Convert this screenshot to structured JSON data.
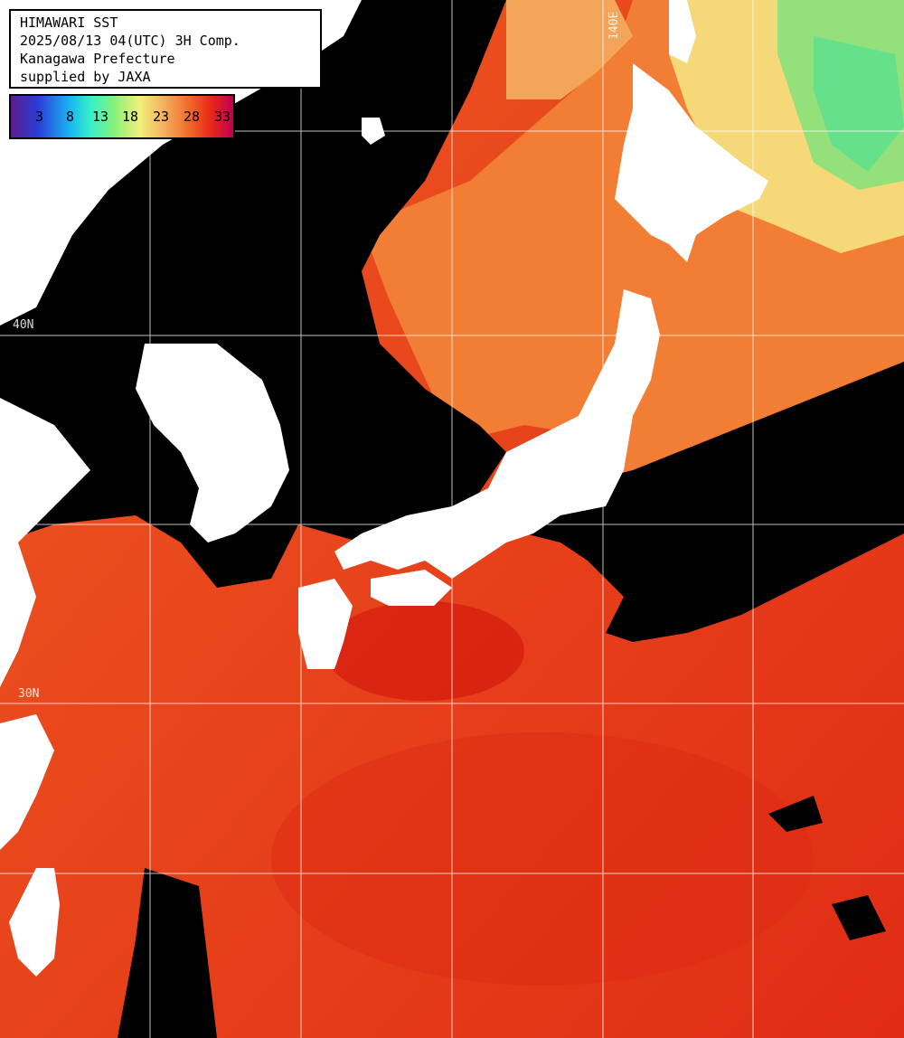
{
  "header": {
    "title": "HIMAWARI SST",
    "datetime": "2025/08/13 04(UTC) 3H Comp.",
    "region": "Kanagawa Prefecture",
    "credit": "supplied by JAXA"
  },
  "colorbar": {
    "ticks": [
      "3",
      "8",
      "13",
      "18",
      "23",
      "28",
      "33"
    ]
  },
  "grid": {
    "lon_label": "140E",
    "lat_labels": [
      "40N",
      "30N"
    ]
  },
  "colors": {
    "warm_sea": "#e8401a",
    "hot_sea": "#d42012",
    "mild_sea": "#f07a30",
    "cool_sea": "#f0b060",
    "cold_sea": "#8ee070",
    "land": "#ffffff",
    "cloud": "#000000",
    "grid": "#ffffff"
  },
  "icons": [
    "map-land-white",
    "cloud-mask-black"
  ]
}
